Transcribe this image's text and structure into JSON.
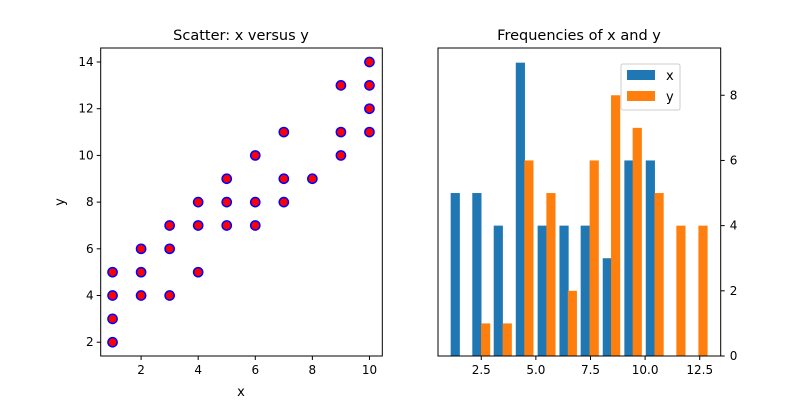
{
  "chart_data": [
    {
      "type": "scatter",
      "title": "Scatter: x versus y",
      "xlabel": "x",
      "ylabel": "y",
      "xlim": [
        0.585,
        10.45
      ],
      "ylim": [
        1.41,
        14.6
      ],
      "xticks": [
        2,
        4,
        6,
        8,
        10
      ],
      "yticks": [
        2,
        4,
        6,
        8,
        10,
        12,
        14
      ],
      "marker_face": "#ff0000",
      "marker_edge": "#0000ff",
      "points": [
        [
          1,
          2
        ],
        [
          1,
          3
        ],
        [
          1,
          4
        ],
        [
          1,
          5
        ],
        [
          2,
          4
        ],
        [
          2,
          5
        ],
        [
          2,
          6
        ],
        [
          3,
          4
        ],
        [
          3,
          6
        ],
        [
          3,
          7
        ],
        [
          4,
          5
        ],
        [
          4,
          7
        ],
        [
          4,
          8
        ],
        [
          5,
          7
        ],
        [
          5,
          8
        ],
        [
          5,
          9
        ],
        [
          6,
          7
        ],
        [
          6,
          8
        ],
        [
          6,
          10
        ],
        [
          7,
          8
        ],
        [
          7,
          9
        ],
        [
          7,
          11
        ],
        [
          8,
          9
        ],
        [
          9,
          10
        ],
        [
          9,
          11
        ],
        [
          9,
          13
        ],
        [
          10,
          11
        ],
        [
          10,
          12
        ],
        [
          10,
          13
        ],
        [
          10,
          14
        ]
      ],
      "grid": false
    },
    {
      "type": "bar",
      "title": "Frequencies of x and y",
      "xlim": [
        0.52,
        13.46
      ],
      "ylim": [
        0,
        9.45
      ],
      "xticks": [
        "2.5",
        "5.0",
        "7.5",
        "10.0",
        "12.5"
      ],
      "xtick_values": [
        2.5,
        5.0,
        7.5,
        10.0,
        12.5
      ],
      "yticks": [
        0,
        2,
        4,
        6,
        8
      ],
      "yaxis_side": "right",
      "bar_width": 0.42,
      "legend_position": "upper-right",
      "grid": false,
      "series": [
        {
          "name": "x",
          "color": "#1f77b4",
          "x": [
            1.31,
            2.3,
            3.28,
            4.29,
            5.29,
            6.29,
            7.26,
            8.27,
            9.26,
            10.24
          ],
          "values": [
            5,
            5,
            4,
            9,
            4,
            4,
            4,
            3,
            6,
            6
          ]
        },
        {
          "name": "y",
          "color": "#ff7f0e",
          "x": [
            2.7,
            3.69,
            4.68,
            5.69,
            6.67,
            7.67,
            8.65,
            9.64,
            10.64,
            11.64,
            12.65
          ],
          "values": [
            1,
            1,
            6,
            5,
            2,
            6,
            8,
            7,
            5,
            4,
            4
          ]
        }
      ]
    }
  ]
}
